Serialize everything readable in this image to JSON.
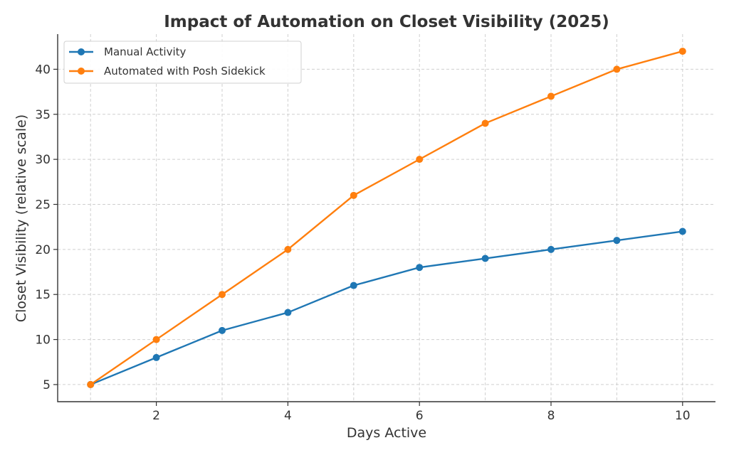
{
  "chart_data": {
    "type": "line",
    "title": "Impact of Automation on Closet Visibility (2025)",
    "xlabel": "Days Active",
    "ylabel": "Closet Visibility (relative scale)",
    "x": [
      1,
      2,
      3,
      4,
      5,
      6,
      7,
      8,
      9,
      10
    ],
    "xlim": [
      0.5,
      10.5
    ],
    "ylim": [
      3.1,
      43.9
    ],
    "xticks": [
      2,
      4,
      6,
      8,
      10
    ],
    "yticks": [
      5,
      10,
      15,
      20,
      25,
      30,
      35,
      40
    ],
    "grid": true,
    "legend_position": "top-left",
    "series": [
      {
        "name": "Manual Activity",
        "color": "#1f77b4",
        "values": [
          5,
          8,
          11,
          13,
          16,
          18,
          19,
          20,
          21,
          22
        ]
      },
      {
        "name": "Automated with Posh Sidekick",
        "color": "#ff7f0e",
        "values": [
          5,
          10,
          15,
          20,
          26,
          30,
          34,
          37,
          40,
          42
        ]
      }
    ]
  }
}
